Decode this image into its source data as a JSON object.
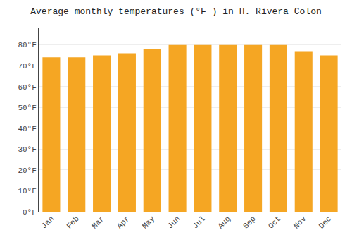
{
  "chart_data": {
    "type": "bar",
    "title": "Average monthly temperatures (°F ) in H. Rivera Colon",
    "categories": [
      "Jan",
      "Feb",
      "Mar",
      "Apr",
      "May",
      "Jun",
      "Jul",
      "Aug",
      "Sep",
      "Oct",
      "Nov",
      "Dec"
    ],
    "values": [
      74,
      74,
      75,
      76,
      78,
      80,
      80,
      80,
      80,
      80,
      77,
      75
    ],
    "color": "#F5A623",
    "ylim": [
      0,
      88
    ],
    "yticks": [
      {
        "value": 0,
        "label": "0°F"
      },
      {
        "value": 10,
        "label": "10°F"
      },
      {
        "value": 20,
        "label": "20°F"
      },
      {
        "value": 30,
        "label": "30°F"
      },
      {
        "value": 40,
        "label": "40°F"
      },
      {
        "value": 50,
        "label": "50°F"
      },
      {
        "value": 60,
        "label": "60°F"
      },
      {
        "value": 70,
        "label": "70°F"
      },
      {
        "value": 80,
        "label": "80°F"
      }
    ],
    "grid": true
  }
}
